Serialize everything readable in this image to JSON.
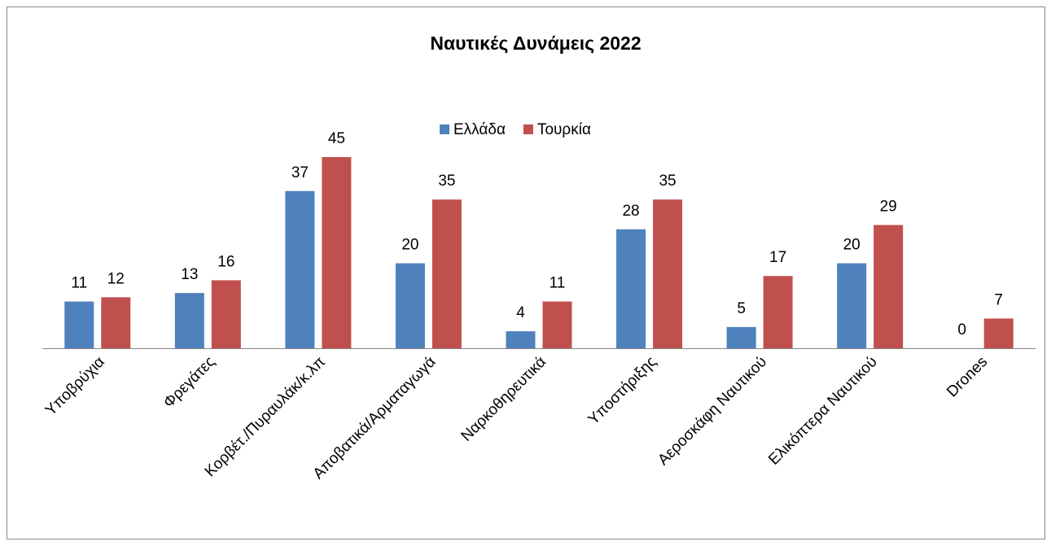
{
  "chart_data": {
    "type": "bar",
    "title": "Ναυτικές Δυνάμεις 2022",
    "categories": [
      "Υποβρύχια",
      "Φρεγάτες",
      "Κορβέτ./Πυραυλάκ/κ.λπ",
      "Αποβατικά/Αρματαγωγά",
      "Ναρκοθηρευτικά",
      "Υποστήριξης",
      "Αεροσκάφη Ναυτικού",
      "Ελικόπτερα Ναυτικού",
      "Drones"
    ],
    "series": [
      {
        "name": "Ελλάδα",
        "color": "#4f81bd",
        "values": [
          11,
          13,
          37,
          20,
          4,
          28,
          5,
          20,
          0
        ]
      },
      {
        "name": "Τουρκία",
        "color": "#c0504d",
        "values": [
          12,
          16,
          45,
          35,
          11,
          35,
          17,
          29,
          7
        ]
      }
    ],
    "legend": "top"
  }
}
